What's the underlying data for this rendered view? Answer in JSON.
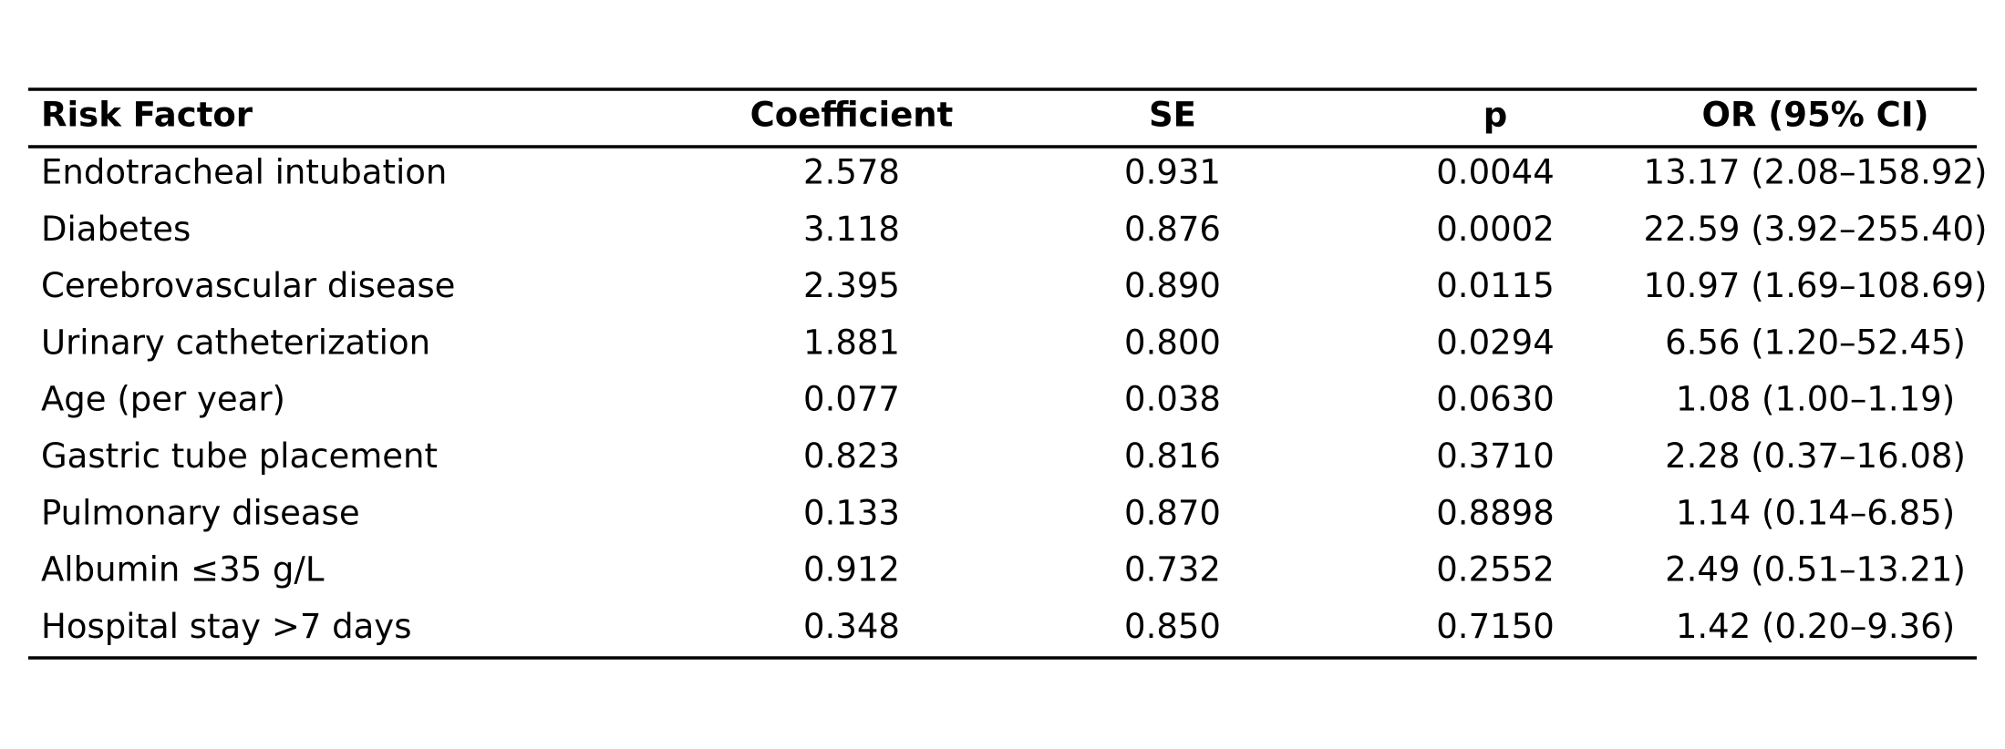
{
  "table": {
    "header": [
      "Risk Factor",
      "Coefficient",
      "SE",
      "p",
      "OR (95% CI)"
    ],
    "rows": [
      [
        "Endotracheal intubation",
        "2.578",
        "0.931",
        "0.0044",
        "13.17 (2.08–158.92)"
      ],
      [
        "Diabetes",
        "3.118",
        "0.876",
        "0.0002",
        "22.59 (3.92–255.40)"
      ],
      [
        "Cerebrovascular disease",
        "2.395",
        "0.890",
        "0.0115",
        "10.97 (1.69–108.69)"
      ],
      [
        "Urinary catheterization",
        "1.881",
        "0.800",
        "0.0294",
        "6.56 (1.20–52.45)"
      ],
      [
        "Age (per year)",
        "0.077",
        "0.038",
        "0.0630",
        "1.08 (1.00–1.19)"
      ],
      [
        "Gastric tube placement",
        "0.823",
        "0.816",
        "0.3710",
        "2.28 (0.37–16.08)"
      ],
      [
        "Pulmonary disease",
        "0.133",
        "0.870",
        "0.8898",
        "1.14 (0.14–6.85)"
      ],
      [
        "Albumin ≤35 g/L",
        "0.912",
        "0.732",
        "0.2552",
        "2.49 (0.51–13.21)"
      ],
      [
        "Hospital stay >7 days",
        "0.348",
        "0.850",
        "0.7150",
        "1.42 (0.20–9.36)"
      ]
    ]
  }
}
